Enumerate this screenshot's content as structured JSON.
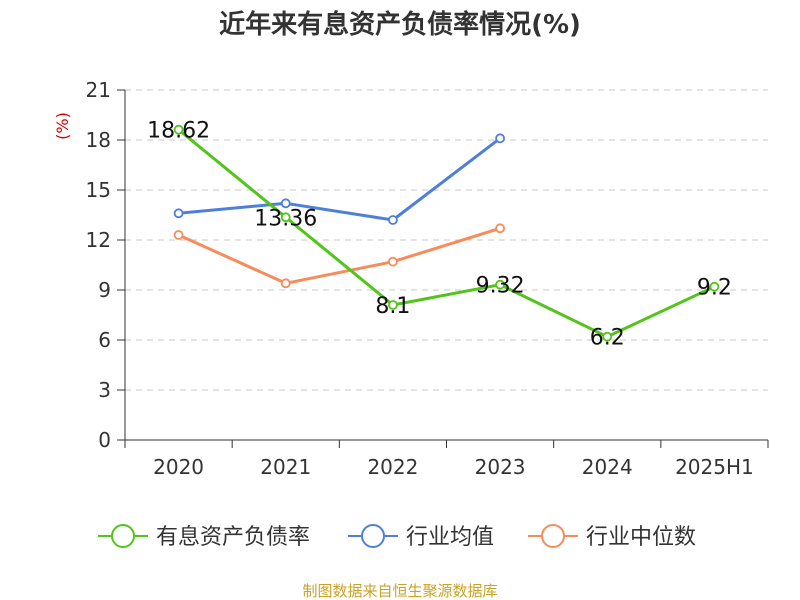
{
  "colors": {
    "debt_ratio": "#52c41a",
    "industry_avg": "#4e7fd9",
    "industry_median": "#f58c5a",
    "source_text": "#c9a227",
    "unit_text": "#d40000"
  },
  "chart_data": {
    "type": "line",
    "title": "近年来有息资产负债率情况(%)",
    "unit_label": "(%)",
    "categories": [
      "2020",
      "2021",
      "2022",
      "2023",
      "2024",
      "2025H1"
    ],
    "ylim": [
      0,
      21
    ],
    "yticks": [
      0,
      3,
      6,
      9,
      12,
      15,
      18,
      21
    ],
    "grid": true,
    "legend_position": "bottom",
    "series": [
      {
        "name": "有息资产负债率",
        "color": "#52c41a",
        "values": [
          18.62,
          13.36,
          8.1,
          9.32,
          6.2,
          9.2
        ],
        "labels": [
          "18.62",
          "13.36",
          "8.1",
          "9.32",
          "6.2",
          "9.2"
        ]
      },
      {
        "name": "行业均值",
        "color": "#4e7fd9",
        "values": [
          13.6,
          14.2,
          13.2,
          18.1,
          null,
          null
        ]
      },
      {
        "name": "行业中位数",
        "color": "#f58c5a",
        "values": [
          12.3,
          9.4,
          10.7,
          12.7,
          null,
          null
        ]
      }
    ]
  },
  "source": "制图数据来自恒生聚源数据库"
}
